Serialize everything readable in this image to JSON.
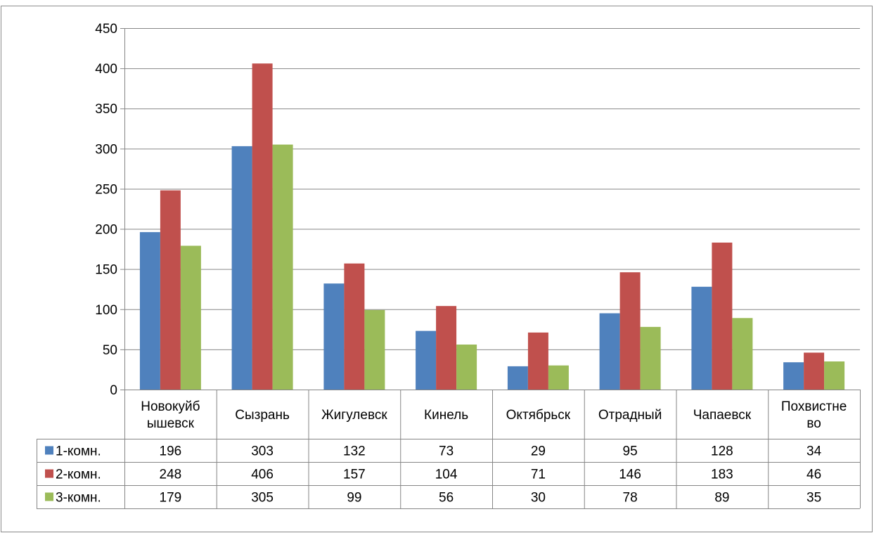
{
  "chart_data": {
    "type": "bar",
    "categories": [
      [
        "Новокуйб",
        "ышевск"
      ],
      [
        "Сызрань"
      ],
      [
        "Жигулевск"
      ],
      [
        "Кинель"
      ],
      [
        "Октябрьск"
      ],
      [
        "Отрадный"
      ],
      [
        "Чапаевск"
      ],
      [
        "Похвистне",
        "во"
      ]
    ],
    "series": [
      {
        "name": "1-комн.",
        "color": "#4F81BD",
        "values": [
          196,
          303,
          132,
          73,
          29,
          95,
          128,
          34
        ]
      },
      {
        "name": "2-комн.",
        "color": "#C0504D",
        "values": [
          248,
          406,
          157,
          104,
          71,
          146,
          183,
          46
        ]
      },
      {
        "name": "3-комн.",
        "color": "#9BBB59",
        "values": [
          179,
          305,
          99,
          56,
          30,
          78,
          89,
          35
        ]
      }
    ],
    "ylim": [
      0,
      450
    ],
    "yticks": [
      0,
      50,
      100,
      150,
      200,
      250,
      300,
      350,
      400,
      450
    ],
    "grid": true,
    "legend": "data-table"
  }
}
